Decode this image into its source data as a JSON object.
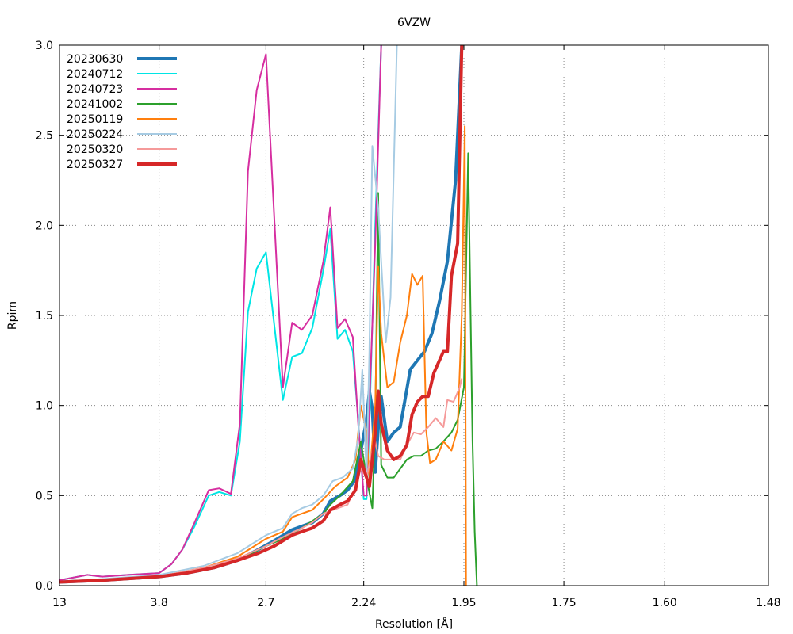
{
  "chart_data": {
    "type": "line",
    "title": "6VZW",
    "xlabel": "Resolution [Å]",
    "ylabel": "Rpim",
    "x_scale": "reciprocal-square",
    "xlim": [
      13,
      1.48
    ],
    "ylim": [
      0,
      3
    ],
    "grid": true,
    "legend_position": "top-left",
    "x_ticks": [
      {
        "value": 13,
        "label": "13"
      },
      {
        "value": 3.8,
        "label": "3.8"
      },
      {
        "value": 2.7,
        "label": "2.7"
      },
      {
        "value": 2.24,
        "label": "2.24"
      },
      {
        "value": 1.95,
        "label": "1.95"
      },
      {
        "value": 1.75,
        "label": "1.75"
      },
      {
        "value": 1.6,
        "label": "1.60"
      },
      {
        "value": 1.48,
        "label": "1.48"
      }
    ],
    "y_ticks": [
      "0.0",
      "0.5",
      "1.0",
      "1.5",
      "2.0",
      "2.5",
      "3.0"
    ],
    "series": [
      {
        "name": "20230630",
        "color": "#1f77b4",
        "width": 4,
        "points": [
          [
            13,
            0.02
          ],
          [
            5.5,
            0.03
          ],
          [
            3.8,
            0.05
          ],
          [
            3.4,
            0.07
          ],
          [
            3.1,
            0.1
          ],
          [
            2.9,
            0.14
          ],
          [
            2.75,
            0.2
          ],
          [
            2.65,
            0.25
          ],
          [
            2.55,
            0.31
          ],
          [
            2.5,
            0.33
          ],
          [
            2.45,
            0.35
          ],
          [
            2.4,
            0.4
          ],
          [
            2.37,
            0.47
          ],
          [
            2.33,
            0.5
          ],
          [
            2.3,
            0.53
          ],
          [
            2.27,
            0.59
          ],
          [
            2.25,
            0.75
          ],
          [
            2.23,
            0.92
          ],
          [
            2.22,
            1.08
          ],
          [
            2.21,
            0.98
          ],
          [
            2.2,
            0.63
          ],
          [
            2.19,
            0.87
          ],
          [
            2.18,
            1.05
          ],
          [
            2.16,
            0.8
          ],
          [
            2.14,
            0.85
          ],
          [
            2.12,
            0.88
          ],
          [
            2.09,
            1.2
          ],
          [
            2.07,
            1.25
          ],
          [
            2.05,
            1.3
          ],
          [
            2.03,
            1.4
          ],
          [
            2.01,
            1.58
          ],
          [
            1.99,
            1.8
          ],
          [
            1.97,
            2.25
          ],
          [
            1.955,
            3.0
          ]
        ]
      },
      {
        "name": "20240712",
        "color": "#00e5e5",
        "width": 2,
        "points": [
          [
            13,
            0.03
          ],
          [
            6.5,
            0.06
          ],
          [
            5.5,
            0.05
          ],
          [
            4.5,
            0.06
          ],
          [
            3.8,
            0.07
          ],
          [
            3.6,
            0.12
          ],
          [
            3.45,
            0.2
          ],
          [
            3.3,
            0.33
          ],
          [
            3.15,
            0.5
          ],
          [
            3.05,
            0.52
          ],
          [
            2.95,
            0.5
          ],
          [
            2.88,
            0.8
          ],
          [
            2.82,
            1.52
          ],
          [
            2.76,
            1.76
          ],
          [
            2.7,
            1.85
          ],
          [
            2.6,
            1.03
          ],
          [
            2.55,
            1.27
          ],
          [
            2.5,
            1.29
          ],
          [
            2.45,
            1.43
          ],
          [
            2.4,
            1.75
          ],
          [
            2.37,
            1.98
          ],
          [
            2.34,
            1.37
          ],
          [
            2.31,
            1.42
          ],
          [
            2.28,
            1.3
          ],
          [
            2.26,
            0.92
          ],
          [
            2.24,
            0.48
          ],
          [
            2.23,
            0.48
          ],
          [
            2.22,
            0.9
          ],
          [
            2.2,
            2.0
          ],
          [
            2.18,
            3.0
          ]
        ]
      },
      {
        "name": "20240723",
        "color": "#d62ea0",
        "width": 2,
        "points": [
          [
            13,
            0.03
          ],
          [
            6.5,
            0.06
          ],
          [
            5.5,
            0.05
          ],
          [
            4.5,
            0.06
          ],
          [
            3.8,
            0.07
          ],
          [
            3.6,
            0.12
          ],
          [
            3.45,
            0.2
          ],
          [
            3.3,
            0.35
          ],
          [
            3.15,
            0.53
          ],
          [
            3.05,
            0.54
          ],
          [
            2.95,
            0.51
          ],
          [
            2.88,
            0.9
          ],
          [
            2.82,
            2.3
          ],
          [
            2.76,
            2.75
          ],
          [
            2.7,
            2.95
          ],
          [
            2.6,
            1.1
          ],
          [
            2.55,
            1.46
          ],
          [
            2.5,
            1.42
          ],
          [
            2.45,
            1.5
          ],
          [
            2.4,
            1.8
          ],
          [
            2.37,
            2.1
          ],
          [
            2.34,
            1.43
          ],
          [
            2.31,
            1.48
          ],
          [
            2.28,
            1.38
          ],
          [
            2.26,
            0.9
          ],
          [
            2.24,
            0.5
          ],
          [
            2.23,
            0.5
          ],
          [
            2.22,
            1.0
          ],
          [
            2.2,
            1.9
          ],
          [
            2.18,
            3.0
          ]
        ]
      },
      {
        "name": "20241002",
        "color": "#2ca02c",
        "width": 2,
        "points": [
          [
            13,
            0.02
          ],
          [
            3.8,
            0.05
          ],
          [
            3.2,
            0.09
          ],
          [
            2.9,
            0.14
          ],
          [
            2.7,
            0.22
          ],
          [
            2.6,
            0.26
          ],
          [
            2.5,
            0.32
          ],
          [
            2.4,
            0.4
          ],
          [
            2.37,
            0.45
          ],
          [
            2.33,
            0.5
          ],
          [
            2.28,
            0.58
          ],
          [
            2.25,
            0.8
          ],
          [
            2.23,
            0.6
          ],
          [
            2.21,
            0.43
          ],
          [
            2.2,
            0.9
          ],
          [
            2.19,
            2.18
          ],
          [
            2.18,
            0.67
          ],
          [
            2.16,
            0.6
          ],
          [
            2.14,
            0.6
          ],
          [
            2.1,
            0.7
          ],
          [
            2.08,
            0.72
          ],
          [
            2.06,
            0.72
          ],
          [
            2.04,
            0.75
          ],
          [
            2.02,
            0.76
          ],
          [
            2.0,
            0.8
          ],
          [
            1.98,
            0.85
          ],
          [
            1.965,
            0.92
          ],
          [
            1.95,
            1.1
          ],
          [
            1.94,
            2.4
          ],
          [
            1.935,
            1.6
          ],
          [
            1.93,
            0.8
          ],
          [
            1.925,
            0.3
          ],
          [
            1.92,
            0.0
          ]
        ]
      },
      {
        "name": "20250119",
        "color": "#ff7f0e",
        "width": 2,
        "points": [
          [
            13,
            0.02
          ],
          [
            3.8,
            0.05
          ],
          [
            3.2,
            0.1
          ],
          [
            2.9,
            0.16
          ],
          [
            2.7,
            0.26
          ],
          [
            2.6,
            0.3
          ],
          [
            2.55,
            0.38
          ],
          [
            2.5,
            0.4
          ],
          [
            2.45,
            0.42
          ],
          [
            2.4,
            0.48
          ],
          [
            2.35,
            0.55
          ],
          [
            2.3,
            0.6
          ],
          [
            2.27,
            0.7
          ],
          [
            2.25,
            1.0
          ],
          [
            2.23,
            0.85
          ],
          [
            2.22,
            0.6
          ],
          [
            2.2,
            1.0
          ],
          [
            2.19,
            1.77
          ],
          [
            2.18,
            1.4
          ],
          [
            2.16,
            1.1
          ],
          [
            2.14,
            1.13
          ],
          [
            2.12,
            1.35
          ],
          [
            2.1,
            1.5
          ],
          [
            2.085,
            1.73
          ],
          [
            2.07,
            1.67
          ],
          [
            2.055,
            1.72
          ],
          [
            2.045,
            0.85
          ],
          [
            2.035,
            0.68
          ],
          [
            2.02,
            0.7
          ],
          [
            2.0,
            0.8
          ],
          [
            1.98,
            0.75
          ],
          [
            1.965,
            0.87
          ],
          [
            1.955,
            1.5
          ],
          [
            1.948,
            2.55
          ],
          [
            1.945,
            0.0
          ]
        ]
      },
      {
        "name": "20250224",
        "color": "#a6cbe3",
        "width": 2,
        "points": [
          [
            13,
            0.02
          ],
          [
            3.8,
            0.06
          ],
          [
            3.2,
            0.11
          ],
          [
            2.9,
            0.18
          ],
          [
            2.7,
            0.28
          ],
          [
            2.6,
            0.32
          ],
          [
            2.55,
            0.4
          ],
          [
            2.5,
            0.43
          ],
          [
            2.45,
            0.45
          ],
          [
            2.4,
            0.5
          ],
          [
            2.36,
            0.58
          ],
          [
            2.32,
            0.6
          ],
          [
            2.28,
            0.65
          ],
          [
            2.26,
            0.82
          ],
          [
            2.245,
            1.2
          ],
          [
            2.23,
            0.6
          ],
          [
            2.22,
            1.3
          ],
          [
            2.21,
            2.44
          ],
          [
            2.19,
            2.1
          ],
          [
            2.18,
            1.8
          ],
          [
            2.165,
            1.35
          ],
          [
            2.15,
            1.6
          ],
          [
            2.13,
            3.0
          ]
        ]
      },
      {
        "name": "20250320",
        "color": "#f59a9a",
        "width": 2,
        "points": [
          [
            13,
            0.02
          ],
          [
            3.8,
            0.05
          ],
          [
            3.2,
            0.1
          ],
          [
            2.9,
            0.15
          ],
          [
            2.7,
            0.22
          ],
          [
            2.6,
            0.27
          ],
          [
            2.5,
            0.32
          ],
          [
            2.45,
            0.35
          ],
          [
            2.4,
            0.4
          ],
          [
            2.3,
            0.45
          ],
          [
            2.27,
            0.55
          ],
          [
            2.25,
            0.65
          ],
          [
            2.23,
            0.6
          ],
          [
            2.21,
            0.75
          ],
          [
            2.2,
            0.8
          ],
          [
            2.19,
            0.72
          ],
          [
            2.17,
            0.7
          ],
          [
            2.15,
            0.7
          ],
          [
            2.12,
            0.7
          ],
          [
            2.1,
            0.78
          ],
          [
            2.08,
            0.85
          ],
          [
            2.06,
            0.84
          ],
          [
            2.04,
            0.88
          ],
          [
            2.02,
            0.93
          ],
          [
            2.0,
            0.88
          ],
          [
            1.99,
            1.03
          ],
          [
            1.975,
            1.02
          ],
          [
            1.96,
            1.1
          ],
          [
            1.955,
            1.15
          ]
        ]
      },
      {
        "name": "20250327",
        "color": "#d62728",
        "width": 4,
        "points": [
          [
            13,
            0.02
          ],
          [
            5.5,
            0.03
          ],
          [
            3.8,
            0.05
          ],
          [
            3.4,
            0.07
          ],
          [
            3.1,
            0.1
          ],
          [
            2.9,
            0.14
          ],
          [
            2.75,
            0.18
          ],
          [
            2.65,
            0.22
          ],
          [
            2.55,
            0.28
          ],
          [
            2.5,
            0.3
          ],
          [
            2.45,
            0.32
          ],
          [
            2.4,
            0.36
          ],
          [
            2.37,
            0.42
          ],
          [
            2.33,
            0.45
          ],
          [
            2.3,
            0.47
          ],
          [
            2.27,
            0.53
          ],
          [
            2.25,
            0.7
          ],
          [
            2.23,
            0.6
          ],
          [
            2.22,
            0.55
          ],
          [
            2.2,
            0.85
          ],
          [
            2.19,
            1.08
          ],
          [
            2.18,
            0.9
          ],
          [
            2.16,
            0.75
          ],
          [
            2.14,
            0.7
          ],
          [
            2.12,
            0.72
          ],
          [
            2.1,
            0.78
          ],
          [
            2.085,
            0.95
          ],
          [
            2.07,
            1.02
          ],
          [
            2.055,
            1.05
          ],
          [
            2.04,
            1.05
          ],
          [
            2.025,
            1.18
          ],
          [
            2.0,
            1.3
          ],
          [
            1.99,
            1.3
          ],
          [
            1.98,
            1.72
          ],
          [
            1.965,
            1.9
          ],
          [
            1.955,
            3.0
          ]
        ]
      }
    ]
  }
}
